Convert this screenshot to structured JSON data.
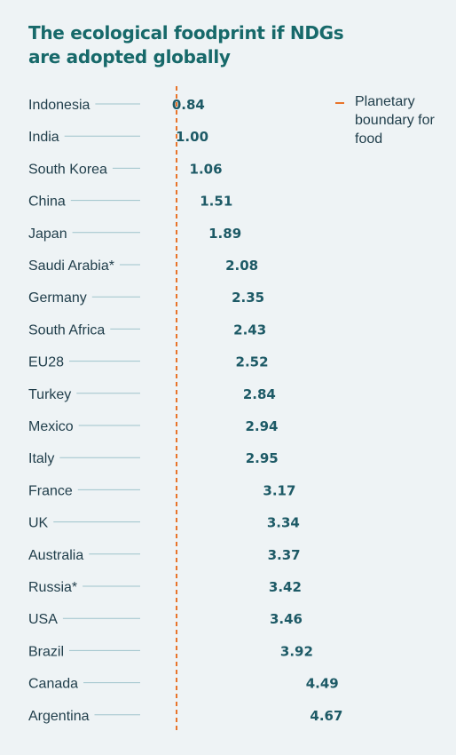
{
  "title": "The ecological foodprint if NDGs are adopted globally",
  "legend": {
    "label": "Planetary boundary for food",
    "color": "#e8742a"
  },
  "colors": {
    "globe": "#1d6b7a",
    "land": "#eaf3f4",
    "title": "#17696a"
  },
  "icons": {
    "unit": "globe-icon"
  },
  "chart_data": {
    "type": "pictograph",
    "title": "The ecological foodprint if NDGs are adopted globally",
    "unit": "planet-equivalents",
    "boundary": 1.0,
    "categories": [
      "Indonesia",
      "India",
      "South Korea",
      "China",
      "Japan",
      "Saudi Arabia*",
      "Germany",
      "South Africa",
      "EU28",
      "Turkey",
      "Mexico",
      "Italy",
      "France",
      "UK",
      "Australia",
      "Russia*",
      "USA",
      "Brazil",
      "Canada",
      "Argentina"
    ],
    "values": [
      0.84,
      1.0,
      1.06,
      1.51,
      1.89,
      2.08,
      2.35,
      2.43,
      2.52,
      2.84,
      2.94,
      2.95,
      3.17,
      3.34,
      3.37,
      3.42,
      3.46,
      3.92,
      4.49,
      4.67
    ],
    "value_labels": [
      "0.84",
      "1.00",
      "1.06",
      "1.51",
      "1.89",
      "2.08",
      "2.35",
      "2.43",
      "2.52",
      "2.84",
      "2.94",
      "2.95",
      "3.17",
      "3.34",
      "3.37",
      "3.42",
      "3.46",
      "3.92",
      "4.49",
      "4.67"
    ]
  }
}
